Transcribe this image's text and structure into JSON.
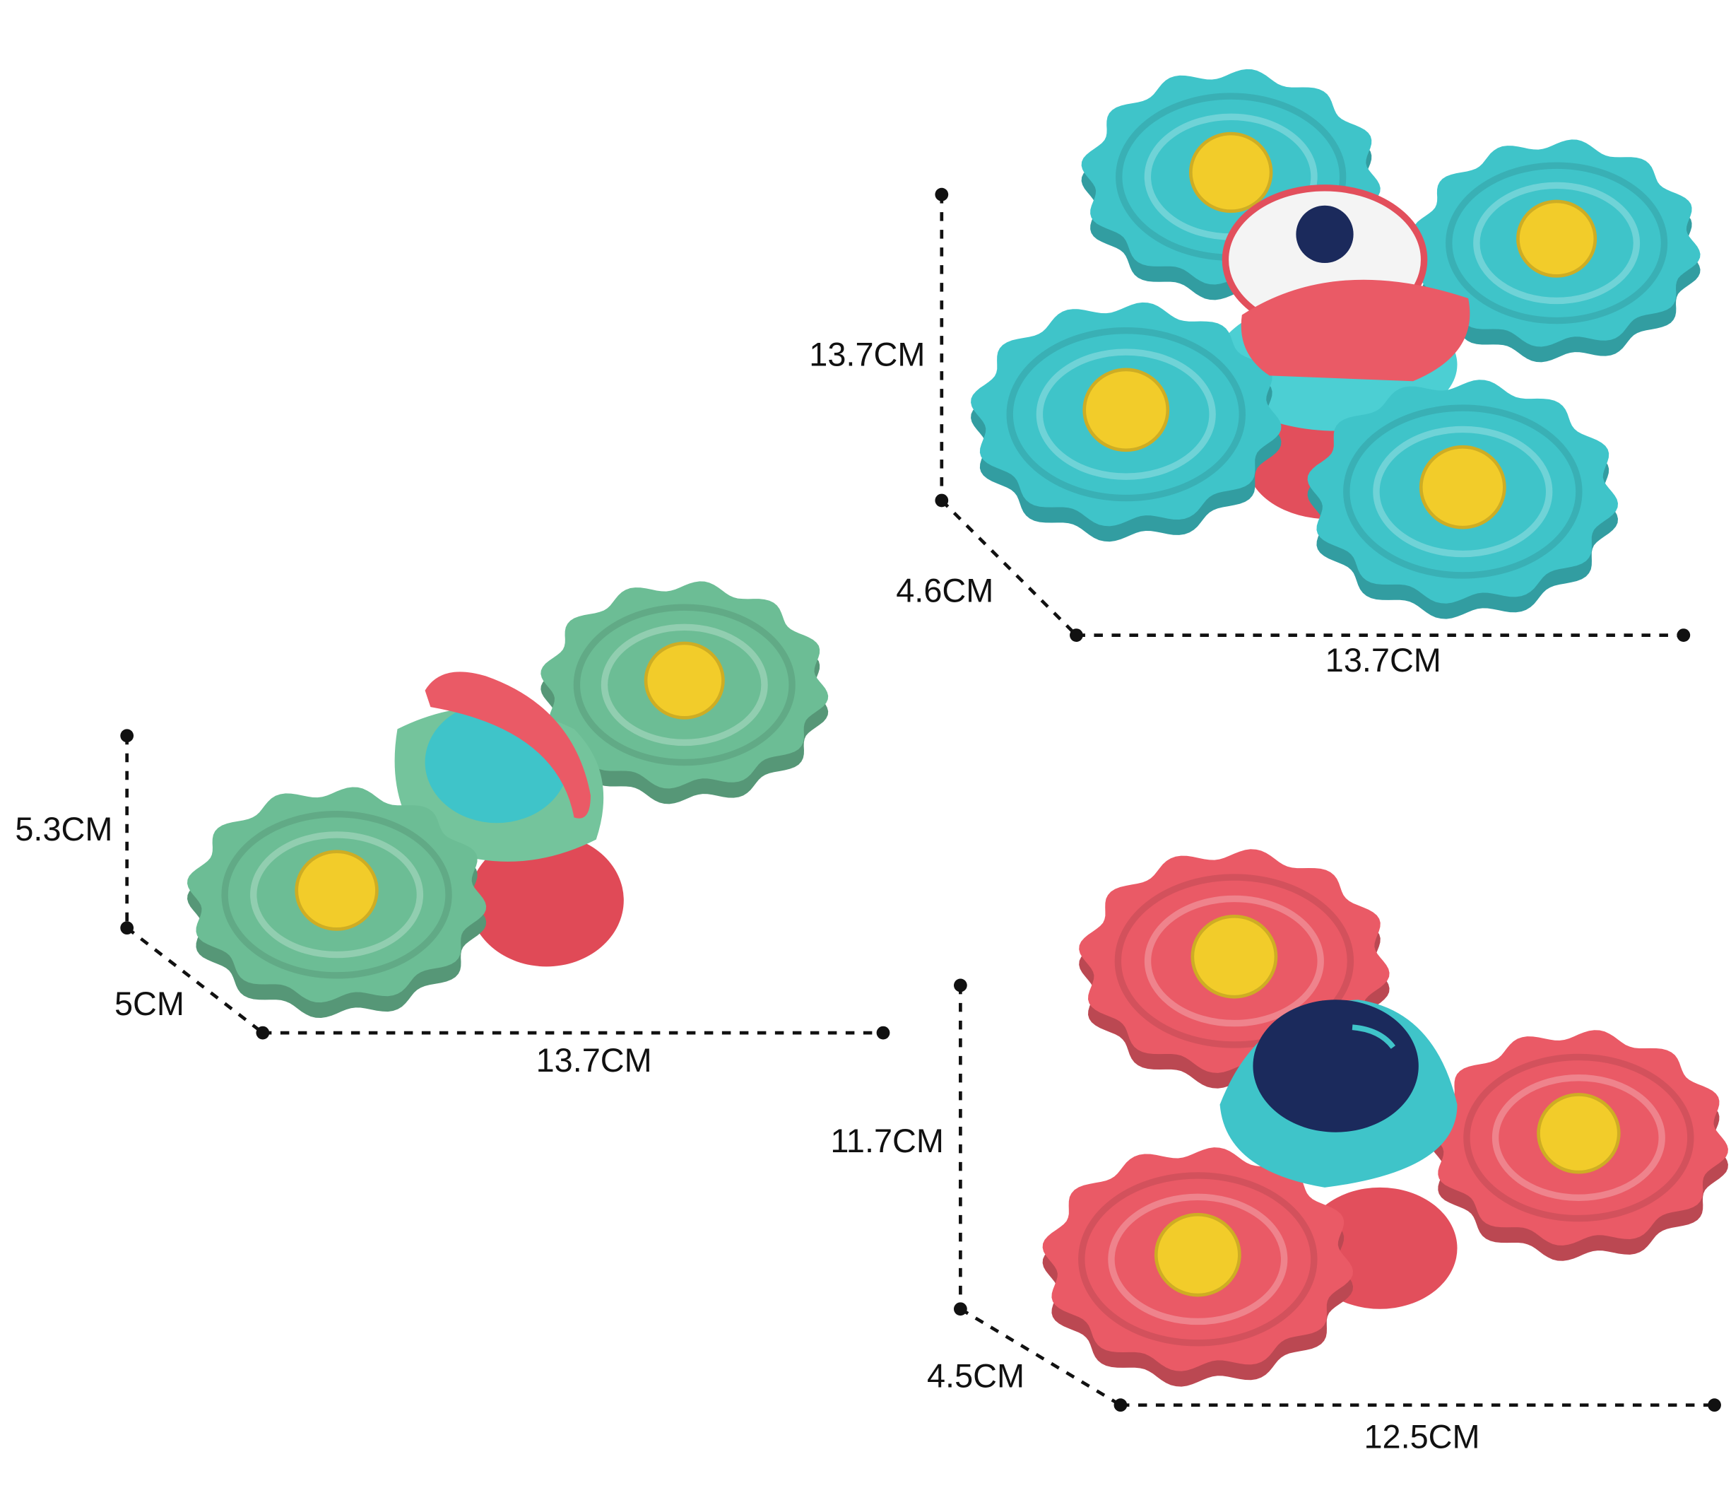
{
  "colors": {
    "teal": "#3fc4c9",
    "green": "#6cbd95",
    "red": "#ea5a66",
    "yellow": "#f2cc2a",
    "navy": "#1b2a5c",
    "line": "#111111"
  },
  "products": [
    {
      "name": "teal four-disc spinner",
      "height_label": "13.7CM",
      "depth_label": "4.6CM",
      "width_label": "13.7CM"
    },
    {
      "name": "green two-disc spinner",
      "height_label": "5.3CM",
      "depth_label": "5CM",
      "width_label": "13.7CM"
    },
    {
      "name": "red three-disc spinner",
      "height_label": "11.7CM",
      "depth_label": "4.5CM",
      "width_label": "12.5CM"
    }
  ]
}
